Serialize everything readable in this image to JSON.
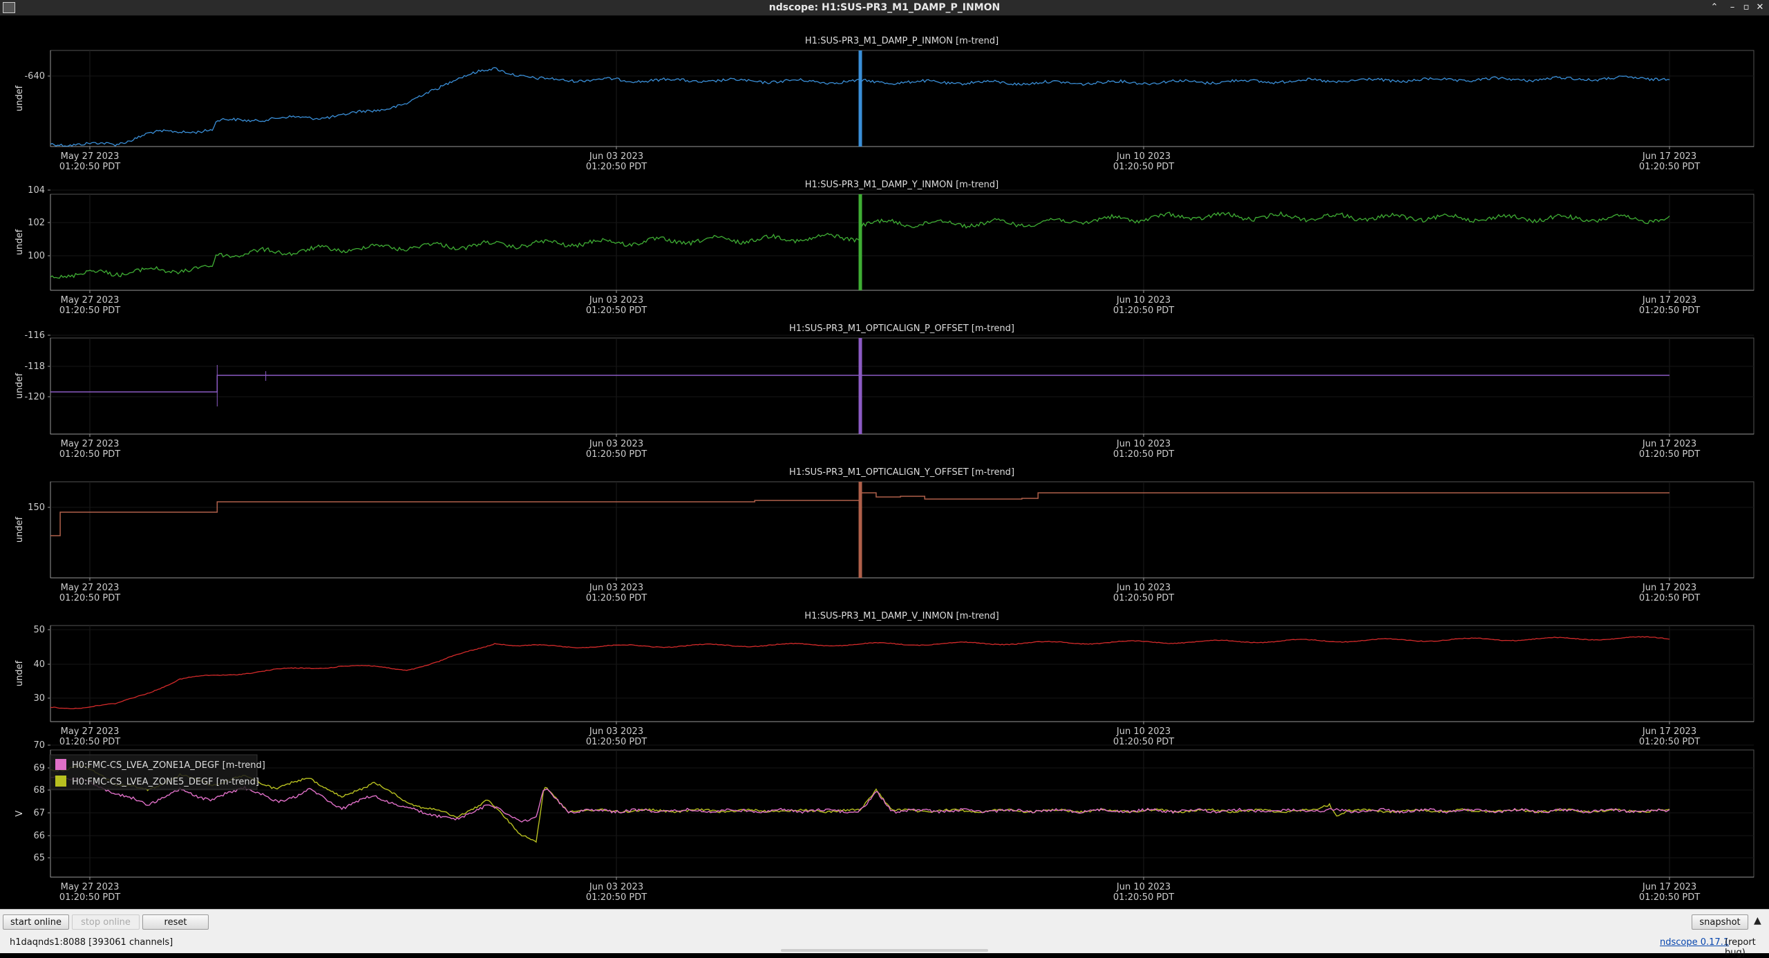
{
  "window": {
    "title": "ndscope: H1:SUS-PR3_M1_DAMP_P_INMON"
  },
  "x_ticks": [
    {
      "date": "May 27 2023",
      "time": "01:20:50 PDT"
    },
    {
      "date": "Jun 03 2023",
      "time": "01:20:50 PDT"
    },
    {
      "date": "Jun 10 2023",
      "time": "01:20:50 PDT"
    },
    {
      "date": "Jun 17 2023",
      "time": "01:20:50 PDT"
    }
  ],
  "plots": [
    {
      "title": "H1:SUS-PR3_M1_DAMP_P_INMON [m-trend]",
      "ylabel": "undef",
      "yticks": [
        "-640"
      ],
      "color": "#3a8fd8"
    },
    {
      "title": "H1:SUS-PR3_M1_DAMP_Y_INMON [m-trend]",
      "ylabel": "undef",
      "yticks": [
        "104",
        "102",
        "100"
      ],
      "color": "#3fae34"
    },
    {
      "title": "H1:SUS-PR3_M1_OPTICALIGN_P_OFFSET [m-trend]",
      "ylabel": "undef",
      "yticks": [
        "-116",
        "-118",
        "-120"
      ],
      "color": "#8c5bc4"
    },
    {
      "title": "H1:SUS-PR3_M1_OPTICALIGN_Y_OFFSET [m-trend]",
      "ylabel": "undef",
      "yticks": [
        "150"
      ],
      "color": "#b0604a"
    },
    {
      "title": "H1:SUS-PR3_M1_DAMP_V_INMON [m-trend]",
      "ylabel": "undef",
      "yticks": [
        "50",
        "40",
        "30"
      ],
      "color": "#d42a2a"
    },
    {
      "title": "",
      "ylabel": "V",
      "yticks": [
        "70",
        "69",
        "68",
        "67",
        "66",
        "65"
      ],
      "color": "#cc66cc",
      "legend": [
        {
          "label": "H0:FMC-CS_LVEA_ZONE1A_DEGF [m-trend]",
          "color": "#e070c8"
        },
        {
          "label": "H0:FMC-CS_LVEA_ZONE5_DEGF [m-trend]",
          "color": "#b8c020"
        }
      ]
    }
  ],
  "toolbar": {
    "start_online": "start online",
    "stop_online": "stop online",
    "reset": "reset",
    "snapshot": "snapshot",
    "expand_glyph": "▲"
  },
  "status": {
    "server": "h1daqnds1:8088  [393061 channels]",
    "version": "ndscope 0.17.1",
    "report": "(report bug)"
  }
}
